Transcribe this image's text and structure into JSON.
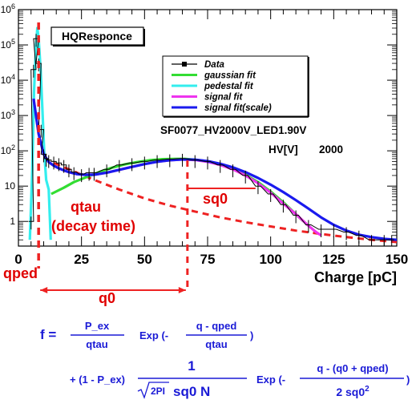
{
  "chart_data": {
    "type": "line",
    "title": "HQResponce",
    "xlabel": "Charge [pC]",
    "ylabel": "",
    "xlim": [
      0,
      150
    ],
    "ylim_log": [
      0.2,
      1000000
    ],
    "y_scale": "log",
    "x_ticks": [
      "0",
      "25",
      "50",
      "75",
      "100",
      "125",
      "150"
    ],
    "y_ticks": [
      {
        "base": "10",
        "exp": "6"
      },
      {
        "base": "10",
        "exp": "5"
      },
      {
        "base": "10",
        "exp": "4"
      },
      {
        "base": "10",
        "exp": "3"
      },
      {
        "base": "10",
        "exp": "2"
      },
      {
        "base": "10",
        "exp": ""
      },
      {
        "base": "1",
        "exp": ""
      }
    ],
    "info_lines": [
      "SF0077_HV2000V_LED1.90V",
      "HV[V]",
      "2000"
    ],
    "legend_position": "top-right",
    "legend": [
      {
        "label": "Data",
        "color": "#000000",
        "style": "marker-line"
      },
      {
        "label": "gaussian  fit",
        "color": "#33dd33"
      },
      {
        "label": "pedestal  fit",
        "color": "#33eeee"
      },
      {
        "label": "signal  fit",
        "color": "#ee33ee"
      },
      {
        "label": "signal  fit(scale)",
        "color": "#1a1aee"
      }
    ],
    "series": [
      {
        "name": "Data",
        "color": "#000000",
        "x": [
          5,
          6,
          7,
          8,
          9,
          10,
          11,
          12,
          14,
          16,
          18,
          20,
          22,
          25,
          28,
          30,
          35,
          40,
          45,
          50,
          55,
          60,
          65,
          70,
          75,
          80,
          85,
          90,
          95,
          100,
          105,
          110,
          115,
          120,
          125,
          130,
          135,
          140,
          145,
          148
        ],
        "y": [
          1,
          20000,
          150000,
          30000,
          400,
          80,
          60,
          55,
          50,
          45,
          40,
          30,
          25,
          22,
          24,
          24,
          30,
          40,
          45,
          50,
          55,
          58,
          60,
          55,
          50,
          40,
          30,
          20,
          10,
          6,
          3,
          1.5,
          0.8,
          0.6,
          0.6,
          0.5,
          0.4,
          0.3,
          0.3,
          0.3
        ]
      },
      {
        "name": "gaussian  fit",
        "color": "#33dd33",
        "x": [
          13,
          18,
          22,
          27,
          32,
          37,
          42,
          47,
          52,
          57,
          62,
          66,
          70,
          75,
          80,
          85,
          90,
          95,
          100,
          105,
          110,
          113
        ],
        "y": [
          6,
          9,
          13,
          18,
          25,
          33,
          41,
          48,
          54,
          58,
          59,
          59,
          56,
          50,
          41,
          31,
          21,
          13,
          7,
          3.5,
          1.6,
          1
        ]
      },
      {
        "name": "pedestal  fit",
        "color": "#33eeee",
        "x": [
          4.5,
          5.5,
          6.2,
          7,
          7.5,
          8,
          8.8,
          9.5,
          10.2,
          11,
          12,
          12.8
        ],
        "y": [
          0.3,
          30,
          5000,
          100000,
          300000,
          150000,
          20000,
          1500,
          100,
          15,
          8,
          0.3
        ]
      },
      {
        "name": "signal  fit",
        "color": "#ee33ee",
        "x": [
          6,
          8,
          10,
          12,
          14,
          16,
          18,
          20,
          23,
          26,
          30,
          35,
          40,
          45,
          50,
          55,
          60,
          65,
          70,
          75,
          80,
          85,
          90,
          95,
          100,
          105,
          110,
          115,
          118,
          120
        ],
        "y": [
          3000,
          300,
          80,
          48,
          38,
          32,
          28,
          25,
          22,
          21,
          21,
          24,
          29,
          35,
          42,
          49,
          54,
          57,
          55,
          49,
          40,
          30,
          20,
          12,
          6.5,
          3.2,
          1.6,
          0.75,
          0.5,
          0.4
        ]
      },
      {
        "name": "signal  fit(scale)",
        "color": "#1a1aee",
        "x": [
          6,
          8,
          10,
          12,
          14,
          16,
          18,
          20,
          23,
          26,
          30,
          35,
          40,
          45,
          50,
          55,
          60,
          65,
          70,
          75,
          80,
          85,
          90,
          95,
          100,
          105,
          110,
          115,
          120,
          125,
          130,
          135,
          140,
          145,
          150
        ],
        "y": [
          3000,
          300,
          80,
          48,
          38,
          32,
          28,
          25,
          22,
          21,
          21,
          24,
          29,
          35,
          42,
          49,
          54,
          57,
          56,
          51,
          43,
          34,
          25,
          17,
          11,
          6.8,
          4,
          2.3,
          1.3,
          0.8,
          0.55,
          0.42,
          0.36,
          0.32,
          0.3
        ]
      },
      {
        "name": "qtau (decay time)",
        "color": "#ee2222",
        "style": "dashed",
        "x": [
          10,
          20,
          30,
          40,
          50,
          60,
          70,
          80,
          90,
          100,
          110,
          120,
          130,
          140,
          150
        ],
        "y": [
          60,
          30,
          15,
          8,
          4.5,
          2.8,
          1.9,
          1.3,
          0.95,
          0.72,
          0.55,
          0.44,
          0.36,
          0.3,
          0.26
        ]
      }
    ],
    "annotations": {
      "qped_label": "qped",
      "qped_x": 8,
      "q0_label": "q0",
      "q0_line_x": 67,
      "sq0_label": "sq0",
      "sq0_span": [
        67,
        94
      ],
      "qtau_label": "qtau",
      "decay_label": "(decay time)"
    },
    "formula": {
      "f": "f =",
      "num1": "P_ex",
      "den1": "qtau",
      "exp1": "Exp (-",
      "num2": "q - qped",
      "den2": "qtau",
      "close1": ")",
      "plus": "+ (1 - P_ex)",
      "num3": "1",
      "sqrt_arg": "2PI",
      "den3": "sq0  N",
      "exp2": "Exp (-",
      "num4": "q - (q0 + qped)",
      "den4": "2 sq0",
      "den4_sup": "2",
      "close2": ")"
    }
  }
}
